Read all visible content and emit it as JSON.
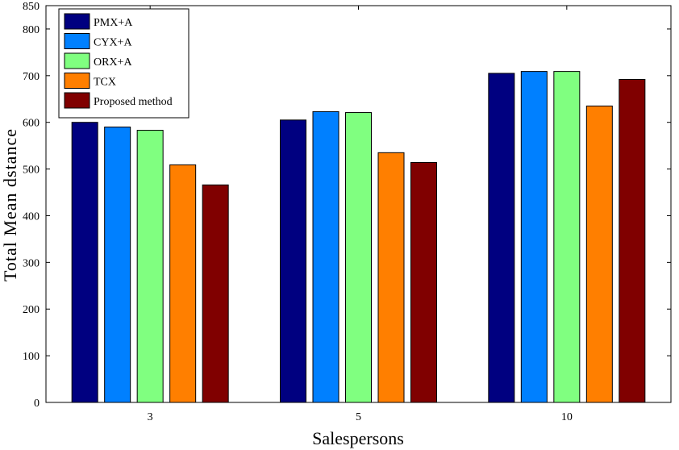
{
  "chart_data": {
    "type": "bar",
    "xlabel": "Salespersons",
    "ylabel": "Total Mean dstance",
    "categories": [
      "3",
      "5",
      "10"
    ],
    "ylim": [
      0,
      850
    ],
    "yticks": [
      0,
      100,
      200,
      300,
      400,
      500,
      600,
      700,
      800,
      850
    ],
    "legend_position": "top-left",
    "series": [
      {
        "name": "PMX+A",
        "color": "#000080",
        "values": [
          600,
          605,
          705
        ]
      },
      {
        "name": "CYX+A",
        "color": "#0080FF",
        "values": [
          590,
          623,
          709
        ]
      },
      {
        "name": "ORX+A",
        "color": "#80FF80",
        "values": [
          583,
          621,
          709
        ]
      },
      {
        "name": "TCX",
        "color": "#FF7F00",
        "values": [
          509,
          535,
          635
        ]
      },
      {
        "name": "Proposed method",
        "color": "#800000",
        "values": [
          466,
          514,
          692
        ]
      }
    ]
  }
}
